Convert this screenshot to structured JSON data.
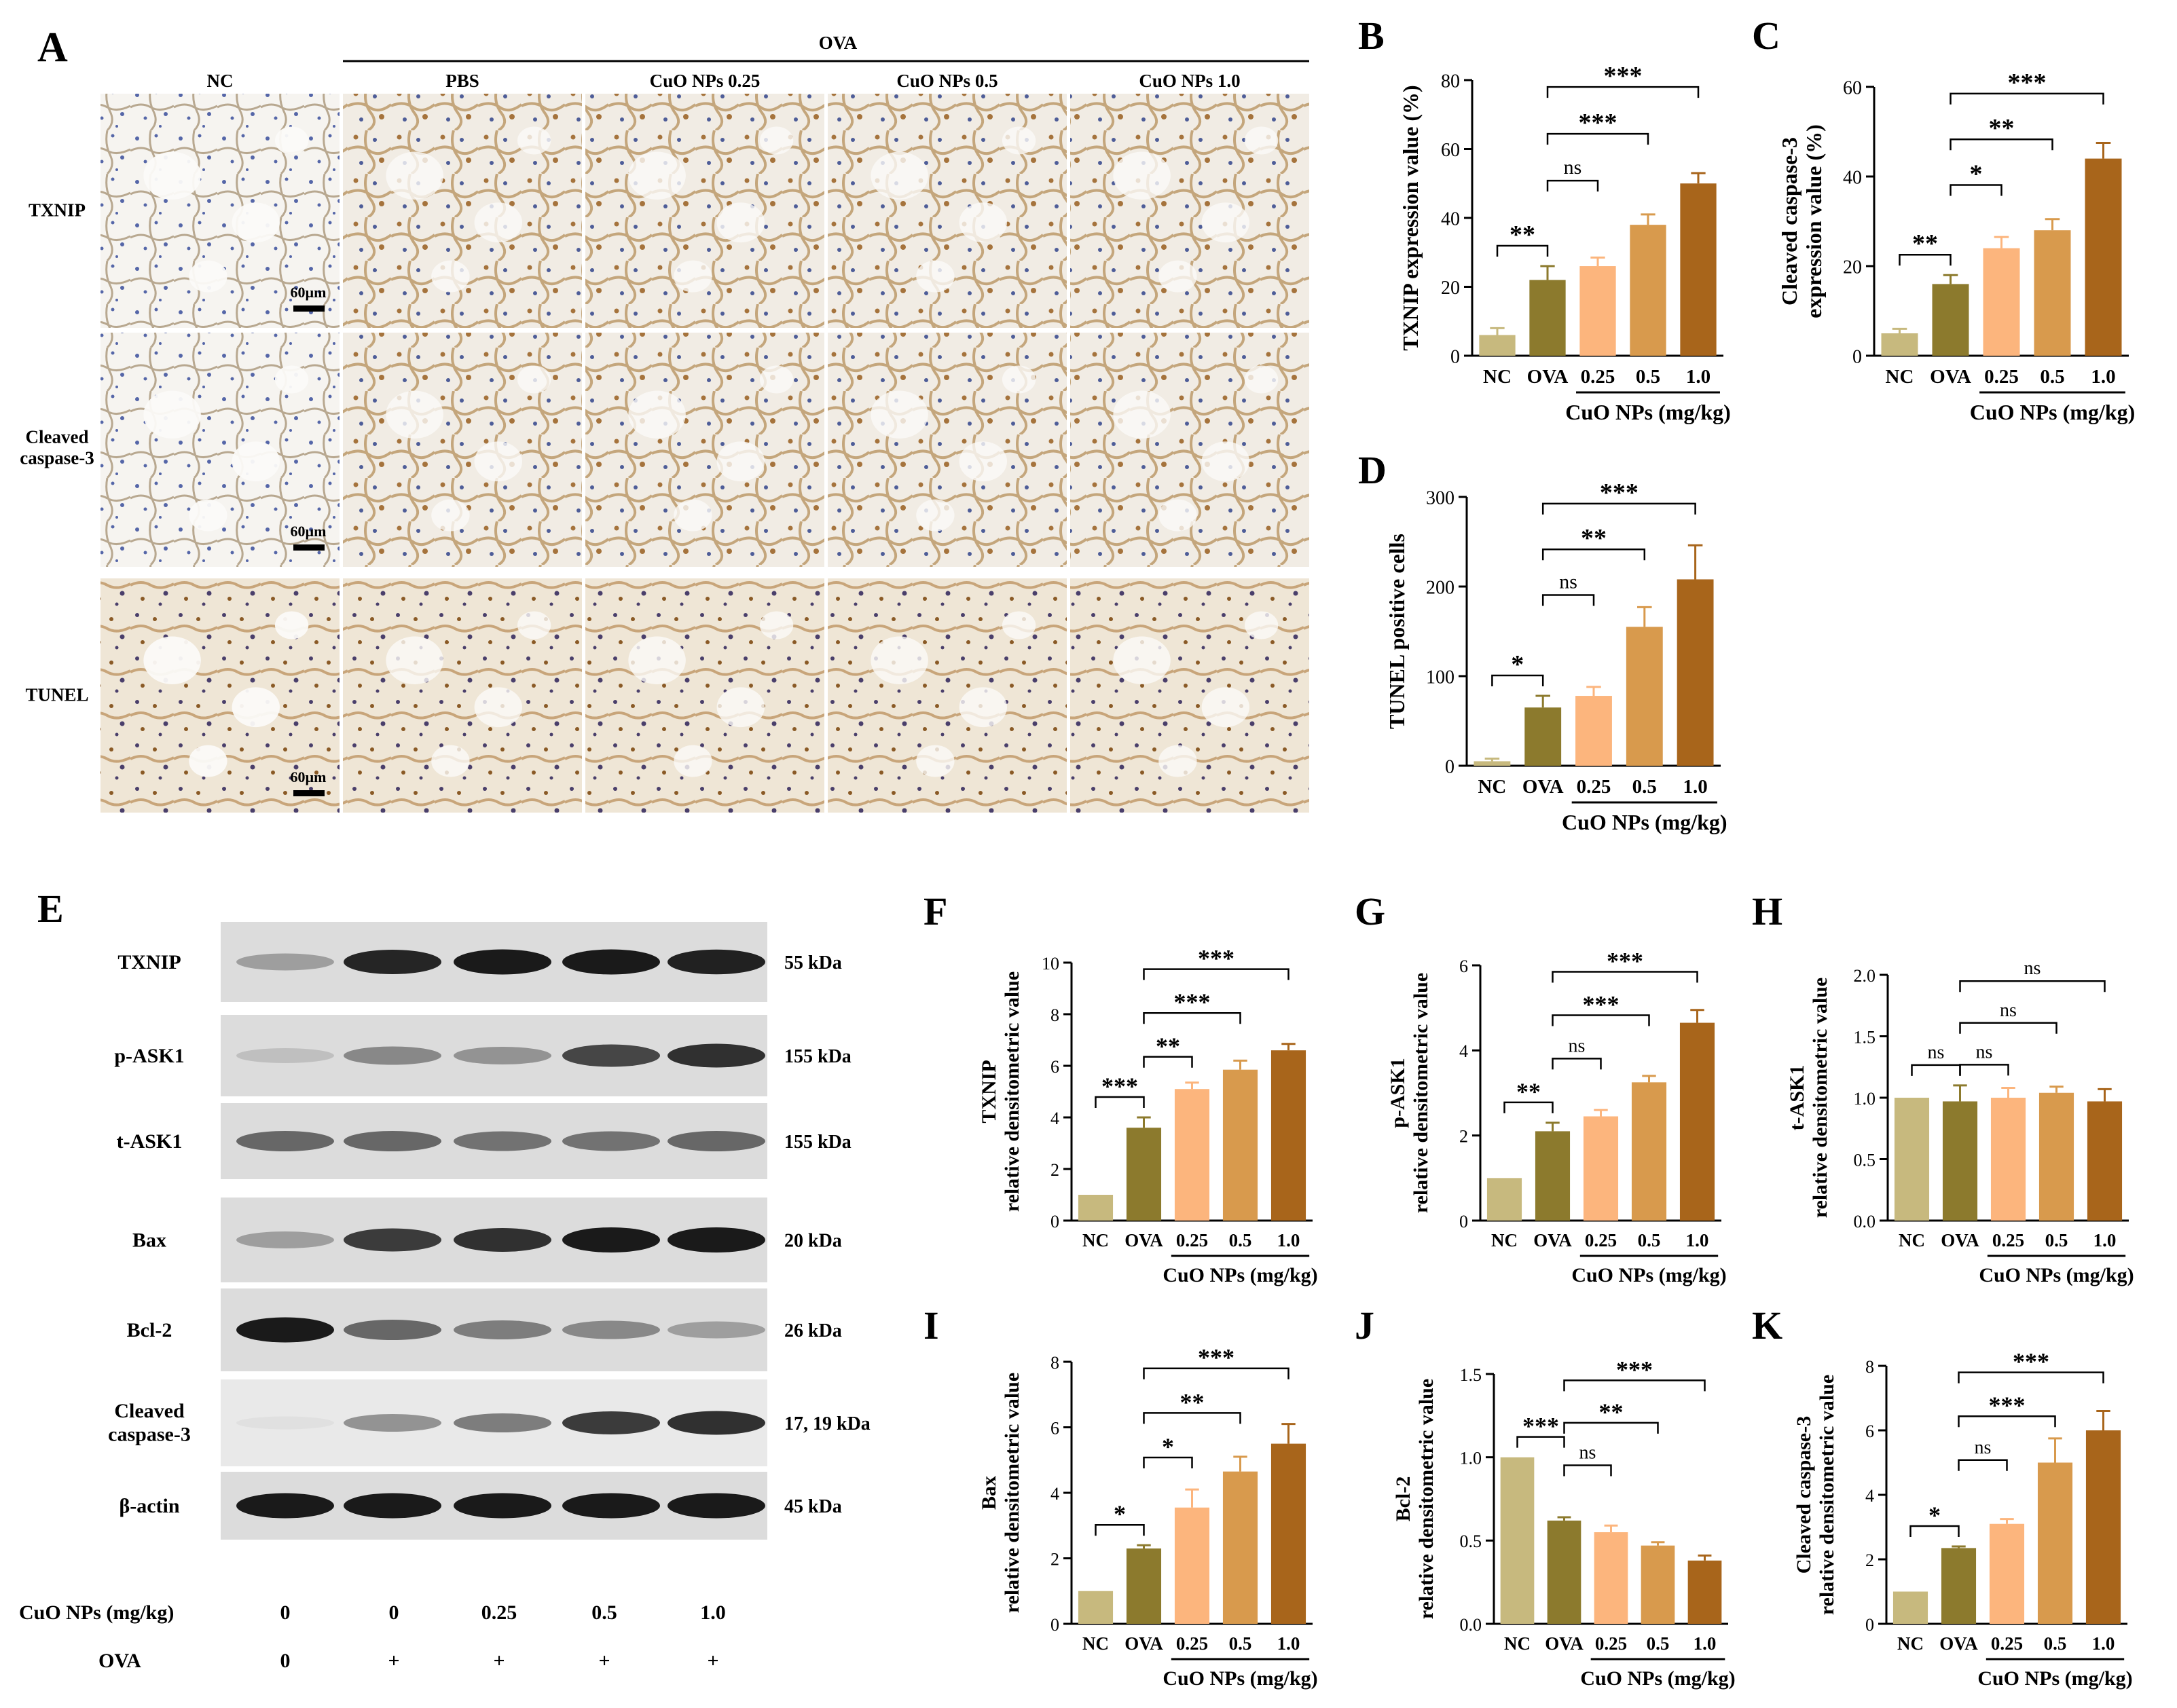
{
  "colors": {
    "NC": "#c7b97e",
    "OVA": "#8c7a2d",
    "d025": "#fcb57d",
    "d05": "#d89a4d",
    "d10": "#a8651b",
    "ihc_background": "#f2f2f3",
    "ihc_stain": "#b88a55",
    "ihc_nuclei": "#4a5aa0"
  },
  "panel_A": {
    "letter": "A",
    "group_label": "OVA",
    "columns": [
      "NC",
      "PBS",
      "CuO NPs 0.25",
      "CuO NPs 0.5",
      "CuO NPs 1.0"
    ],
    "rows": [
      "TXNIP",
      "Cleaved\ncaspase-3",
      "TUNEL"
    ],
    "scale_bar": "60µm"
  },
  "panel_E": {
    "letter": "E",
    "bands": [
      {
        "name": "TXNIP",
        "kda": "55 kDa",
        "intensity": [
          0.35,
          0.9,
          0.95,
          0.95,
          0.92
        ]
      },
      {
        "name": "p-ASK1",
        "kda": "155 kDa",
        "intensity": [
          0.2,
          0.45,
          0.4,
          0.75,
          0.85
        ]
      },
      {
        "name": "t-ASK1",
        "kda": "155 kDa",
        "intensity": [
          0.6,
          0.6,
          0.55,
          0.55,
          0.6
        ]
      },
      {
        "name": "Bax",
        "kda": "20 kDa",
        "intensity": [
          0.35,
          0.8,
          0.85,
          0.95,
          0.95
        ]
      },
      {
        "name": "Bcl-2",
        "kda": "26 kDa",
        "intensity": [
          0.95,
          0.6,
          0.5,
          0.45,
          0.35
        ]
      },
      {
        "name": "Cleaved\ncaspase-3",
        "kda": "17, 19 kDa",
        "intensity": [
          0.05,
          0.4,
          0.5,
          0.8,
          0.85
        ]
      },
      {
        "name": "β-actin",
        "kda": "45 kDa",
        "intensity": [
          0.95,
          0.95,
          0.95,
          0.95,
          0.95
        ]
      }
    ],
    "dose_label": "CuO NPs (mg/kg)",
    "doses": [
      "0",
      "0",
      "0.25",
      "0.5",
      "1.0"
    ],
    "ova_label": "OVA",
    "ova": [
      "0",
      "+",
      "+",
      "+",
      "+"
    ]
  },
  "chart_data": [
    {
      "panel": "B",
      "type": "bar",
      "categories": [
        "NC",
        "OVA",
        "0.25",
        "0.5",
        "1.0"
      ],
      "values": [
        6,
        22,
        26,
        38,
        50
      ],
      "errors": [
        2,
        4,
        2.5,
        3,
        3
      ],
      "ylabel": "TXNIP expression value (%)",
      "ylim": [
        0,
        80
      ],
      "yticks": [
        0,
        20,
        40,
        60,
        80
      ],
      "xgroup_label": "CuO NPs (mg/kg)",
      "sig": [
        {
          "from": 0,
          "to": 1,
          "label": "**"
        },
        {
          "from": 1,
          "to": 2,
          "label": "ns"
        },
        {
          "from": 1,
          "to": 3,
          "label": "***"
        },
        {
          "from": 1,
          "to": 4,
          "label": "***"
        }
      ]
    },
    {
      "panel": "C",
      "type": "bar",
      "categories": [
        "NC",
        "OVA",
        "0.25",
        "0.5",
        "1.0"
      ],
      "values": [
        5,
        16,
        24,
        28,
        44
      ],
      "errors": [
        1,
        2,
        2.5,
        2.5,
        3.5
      ],
      "ylabel": "Cleaved caspase-3\nexpression value (%)",
      "ylim": [
        0,
        60
      ],
      "yticks": [
        0,
        20,
        40,
        60
      ],
      "xgroup_label": "CuO NPs (mg/kg)",
      "sig": [
        {
          "from": 0,
          "to": 1,
          "label": "**"
        },
        {
          "from": 1,
          "to": 2,
          "label": "*"
        },
        {
          "from": 1,
          "to": 3,
          "label": "**"
        },
        {
          "from": 1,
          "to": 4,
          "label": "***"
        }
      ]
    },
    {
      "panel": "D",
      "type": "bar",
      "categories": [
        "NC",
        "OVA",
        "0.25",
        "0.5",
        "1.0"
      ],
      "values": [
        5,
        65,
        78,
        155,
        208
      ],
      "errors": [
        3,
        13,
        10,
        22,
        38
      ],
      "ylabel": "TUNEL positive cells",
      "ylim": [
        0,
        300
      ],
      "yticks": [
        0,
        100,
        200,
        300
      ],
      "xgroup_label": "CuO NPs (mg/kg)",
      "sig": [
        {
          "from": 0,
          "to": 1,
          "label": "*"
        },
        {
          "from": 1,
          "to": 2,
          "label": "ns"
        },
        {
          "from": 1,
          "to": 3,
          "label": "**"
        },
        {
          "from": 1,
          "to": 4,
          "label": "***"
        }
      ]
    },
    {
      "panel": "F",
      "type": "bar",
      "categories": [
        "NC",
        "OVA",
        "0.25",
        "0.5",
        "1.0"
      ],
      "values": [
        1,
        3.6,
        5.1,
        5.85,
        6.6
      ],
      "errors": [
        0,
        0.4,
        0.25,
        0.35,
        0.25
      ],
      "ylabel": "TXNIP\nrelative densitometric value",
      "ylim": [
        0,
        10
      ],
      "yticks": [
        0,
        2,
        4,
        6,
        8,
        10
      ],
      "xgroup_label": "CuO NPs (mg/kg)",
      "sig": [
        {
          "from": 0,
          "to": 1,
          "label": "***"
        },
        {
          "from": 1,
          "to": 2,
          "label": "**"
        },
        {
          "from": 1,
          "to": 3,
          "label": "***"
        },
        {
          "from": 1,
          "to": 4,
          "label": "***"
        }
      ]
    },
    {
      "panel": "G",
      "type": "bar",
      "categories": [
        "NC",
        "OVA",
        "0.25",
        "0.5",
        "1.0"
      ],
      "values": [
        1,
        2.1,
        2.45,
        3.25,
        4.65
      ],
      "errors": [
        0,
        0.2,
        0.15,
        0.15,
        0.3
      ],
      "ylabel": "p-ASK1\nrelative densitometric value",
      "ylim": [
        0,
        6
      ],
      "yticks": [
        0,
        2,
        4,
        6
      ],
      "xgroup_label": "CuO NPs (mg/kg)",
      "sig": [
        {
          "from": 0,
          "to": 1,
          "label": "**"
        },
        {
          "from": 1,
          "to": 2,
          "label": "ns"
        },
        {
          "from": 1,
          "to": 3,
          "label": "***"
        },
        {
          "from": 1,
          "to": 4,
          "label": "***"
        }
      ]
    },
    {
      "panel": "H",
      "type": "bar",
      "categories": [
        "NC",
        "OVA",
        "0.25",
        "0.5",
        "1.0"
      ],
      "values": [
        1,
        0.97,
        1.0,
        1.04,
        0.97
      ],
      "errors": [
        0,
        0.13,
        0.08,
        0.05,
        0.1
      ],
      "ylabel": "t-ASK1\nrelative densitometric value",
      "ylim": [
        0,
        2.0
      ],
      "yticks": [
        0.0,
        0.5,
        1.0,
        1.5,
        2.0
      ],
      "ytick_labels": [
        "0.0",
        "0.5",
        "1.0",
        "1.5",
        "2.0"
      ],
      "xgroup_label": "CuO NPs (mg/kg)",
      "sig": [
        {
          "from": 0,
          "to": 1,
          "label": "ns"
        },
        {
          "from": 1,
          "to": 2,
          "label": "ns"
        },
        {
          "from": 1,
          "to": 3,
          "label": "ns"
        },
        {
          "from": 1,
          "to": 4,
          "label": "ns"
        }
      ]
    },
    {
      "panel": "I",
      "type": "bar",
      "categories": [
        "NC",
        "OVA",
        "0.25",
        "0.5",
        "1.0"
      ],
      "values": [
        1,
        2.3,
        3.55,
        4.65,
        5.5
      ],
      "errors": [
        0,
        0.1,
        0.55,
        0.45,
        0.6
      ],
      "ylabel": "Bax\nrelative densitometric value",
      "ylim": [
        0,
        8
      ],
      "yticks": [
        0,
        2,
        4,
        6,
        8
      ],
      "xgroup_label": "CuO NPs (mg/kg)",
      "sig": [
        {
          "from": 0,
          "to": 1,
          "label": "*"
        },
        {
          "from": 1,
          "to": 2,
          "label": "*"
        },
        {
          "from": 1,
          "to": 3,
          "label": "**"
        },
        {
          "from": 1,
          "to": 4,
          "label": "***"
        }
      ]
    },
    {
      "panel": "J",
      "type": "bar",
      "categories": [
        "NC",
        "OVA",
        "0.25",
        "0.5",
        "1.0"
      ],
      "values": [
        1.0,
        0.62,
        0.55,
        0.47,
        0.38
      ],
      "errors": [
        0,
        0.02,
        0.04,
        0.02,
        0.03
      ],
      "ylabel": "Bcl-2\nrelative densitometric value",
      "ylim": [
        0,
        1.5
      ],
      "yticks": [
        0.0,
        0.5,
        1.0,
        1.5
      ],
      "ytick_labels": [
        "0.0",
        "0.5",
        "1.0",
        "1.5"
      ],
      "xgroup_label": "CuO NPs (mg/kg)",
      "sig": [
        {
          "from": 0,
          "to": 1,
          "label": "***"
        },
        {
          "from": 1,
          "to": 2,
          "label": "ns"
        },
        {
          "from": 1,
          "to": 3,
          "label": "**"
        },
        {
          "from": 1,
          "to": 4,
          "label": "***"
        }
      ]
    },
    {
      "panel": "K",
      "type": "bar",
      "categories": [
        "NC",
        "OVA",
        "0.25",
        "0.5",
        "1.0"
      ],
      "values": [
        1,
        2.35,
        3.1,
        5.0,
        6.0
      ],
      "errors": [
        0,
        0.05,
        0.15,
        0.75,
        0.6
      ],
      "ylabel": "Cleaved caspase-3\nrelative densitometric value",
      "ylim": [
        0,
        8
      ],
      "yticks": [
        0,
        2,
        4,
        6,
        8
      ],
      "xgroup_label": "CuO NPs (mg/kg)",
      "sig": [
        {
          "from": 0,
          "to": 1,
          "label": "*"
        },
        {
          "from": 1,
          "to": 2,
          "label": "ns"
        },
        {
          "from": 1,
          "to": 3,
          "label": "***"
        },
        {
          "from": 1,
          "to": 4,
          "label": "***"
        }
      ]
    }
  ]
}
